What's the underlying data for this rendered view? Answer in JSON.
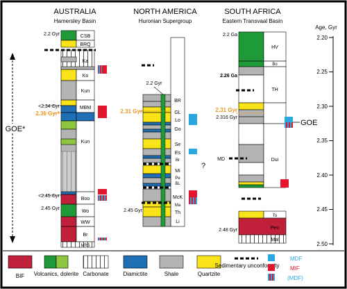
{
  "colors": {
    "bif": "#c0203a",
    "volcanic": "#1e9a38",
    "volcanic_light": "#8ec63f",
    "diamictite": "#1f6fb5",
    "shale": "#b3b3b3",
    "quartzite": "#fbe31a",
    "mdf": "#29a8e0",
    "mif": "#e3152c",
    "orange": "#e8961e"
  },
  "regions": {
    "australia": {
      "title": "AUSTRALIA",
      "subtitle": "Hamersley Basin"
    },
    "north_america": {
      "title": "NORTH AMERICA",
      "subtitle": "Huronian Supergroup"
    },
    "south_africa": {
      "title": "SOUTH AFRICA",
      "subtitle": "Eastern Transvaal Basin"
    }
  },
  "age_axis": {
    "label": "Age, Gyr",
    "ticks": [
      "2.20",
      "2.25",
      "2.30",
      "2.35",
      "2.40",
      "2.45",
      "2.50"
    ]
  },
  "goe": {
    "left": "GOE*",
    "right": "GOE"
  },
  "question": "?",
  "australia": {
    "age_labels": [
      "2.2 Gyr",
      "<2.34 Gyr",
      "2.31 Gyr*",
      "<2.45 Gyr",
      "2.45 Gyr"
    ],
    "units": [
      "CSB",
      "BRQ",
      "Ka",
      "Ko",
      "Kun",
      "MBM",
      "Kun",
      "Boo",
      "Wo",
      "WW",
      "Br",
      "MRS"
    ]
  },
  "north_america": {
    "age_labels": [
      "2.2 Gyr",
      "2.31 Gyr",
      "2.45 Gyr"
    ],
    "units": [
      "BR",
      "GL",
      "Lo",
      "Go",
      "Se",
      "Es",
      "Br",
      "Mi",
      "Pe",
      "BL",
      "McK",
      "Ma",
      "Th",
      "Li"
    ]
  },
  "south_africa": {
    "age_labels": [
      "2.2 Ga",
      "2.26 Ga",
      "2.31 Gyr",
      "2.316 Gyr",
      "MD",
      "2.48 Gyr"
    ],
    "units": [
      "HV",
      "Bo",
      "TH",
      "Dui",
      "To",
      "Pen",
      "Mal"
    ]
  },
  "legend": {
    "bif": "BIF",
    "volcanics": "Volcanics, dolerite",
    "carbonate": "Carbonate",
    "diamictite": "Diamictite",
    "shale": "Shale",
    "quartzite": "Quartzite",
    "unconformity": "Sedimentary unconformity",
    "mdf": "MDF",
    "mif": "MIF",
    "mdf_paren": "(MDF)"
  }
}
